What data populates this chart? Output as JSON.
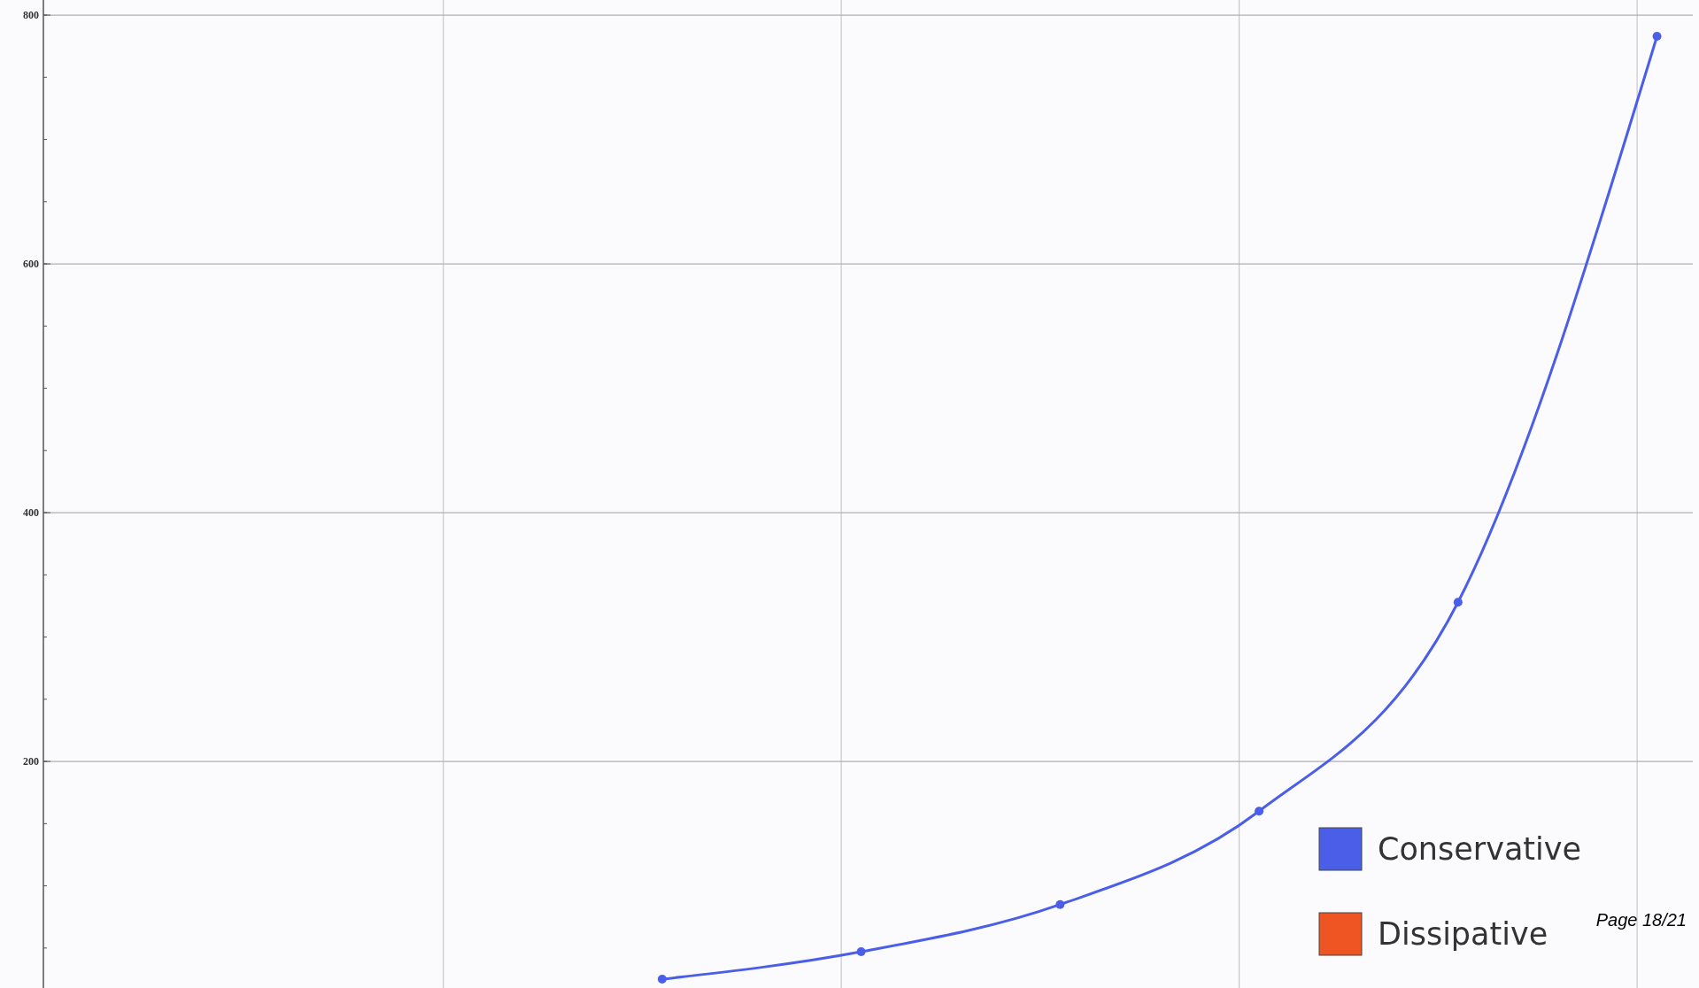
{
  "chart_data": {
    "type": "line",
    "categories": [
      null,
      null,
      null,
      null,
      null,
      null
    ],
    "series": [
      {
        "name": "Conservative",
        "color": "#4a5ee8",
        "values": [
          25,
          47,
          85,
          160,
          328,
          783
        ]
      },
      {
        "name": "Dissipative",
        "color": "#ee5522",
        "values": [
          null,
          null,
          null,
          null,
          null,
          null
        ]
      }
    ],
    "ylim": [
      20,
      810
    ],
    "yticks": [
      200,
      400,
      600,
      800
    ],
    "grid": true,
    "legend": "bottom right",
    "marker": "circle",
    "line_style": "solid",
    "tick_labels": "y",
    "annotations": [
      "Page 18/21"
    ]
  }
}
